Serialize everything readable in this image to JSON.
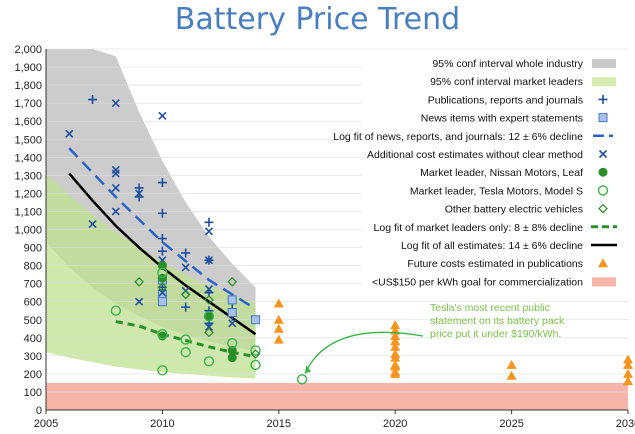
{
  "chart_data": {
    "type": "scatter",
    "title": "Battery Price Trend",
    "xlabel": "",
    "ylabel": "",
    "xlim": [
      2005,
      2030
    ],
    "ylim": [
      0,
      2000
    ],
    "xticks": [
      "2005",
      "2010",
      "2015",
      "2020",
      "2025",
      "2030"
    ],
    "yticks": [
      "0",
      "100",
      "200",
      "300",
      "400",
      "500",
      "600",
      "700",
      "800",
      "900",
      "1,000",
      "1,100",
      "1,200",
      "1,300",
      "1,400",
      "1,500",
      "1,600",
      "1,700",
      "1,800",
      "1,900",
      "2,000"
    ],
    "legend": [
      "95% conf interval whole industry",
      "95% conf interval market leaders",
      "Publications, reports and journals",
      "News items with expert statements",
      "Log fit of news, reports, and journals: 12 ± 6% decline",
      "Additional cost estimates without clear method",
      "Market leader, Nissan Motors, Leaf",
      "Market leader, Tesla Motors, Model S",
      "Other battery electric vehicles",
      "Log fit of market leaders only: 8 ± 8% decline",
      "Log fit of all estimates: 14 ± 6% decline",
      "Future costs estimated in publications",
      "<US$150 per kWh goal for commercialization"
    ],
    "annotation": [
      "Tesla's most recent public",
      "statement on its battery pack",
      "price put it under $190/kWh."
    ],
    "goal_band": [
      0,
      150
    ],
    "industry_ci": {
      "x": [
        2005,
        2006,
        2007,
        2008,
        2009,
        2010,
        2011,
        2012,
        2013,
        2014
      ],
      "lower": [
        930,
        790,
        680,
        590,
        520,
        460,
        415,
        380,
        350,
        330
      ],
      "upper": [
        2000,
        2000,
        2000,
        1960,
        1650,
        1380,
        1150,
        960,
        810,
        680
      ]
    },
    "leaders_ci": {
      "x": [
        2005,
        2006,
        2007,
        2008,
        2009,
        2010,
        2011,
        2012,
        2013,
        2014
      ],
      "lower": [
        320,
        290,
        265,
        240,
        225,
        210,
        200,
        190,
        180,
        175
      ],
      "upper": [
        1310,
        1190,
        1080,
        985,
        900,
        820,
        750,
        690,
        640,
        590
      ]
    },
    "series": [
      {
        "name": "Publications, reports and journals",
        "x": [
          2007,
          2009,
          2009,
          2010,
          2010,
          2010,
          2010,
          2010,
          2011,
          2011,
          2012,
          2012,
          2012,
          2012,
          2012,
          2013,
          2013
        ],
        "y": [
          1720,
          1230,
          1180,
          1260,
          1090,
          950,
          880,
          680,
          870,
          570,
          1040,
          830,
          650,
          550,
          480,
          560,
          520
        ]
      },
      {
        "name": "News items with expert statements",
        "x": [
          2010,
          2010,
          2010,
          2013,
          2013,
          2014
        ],
        "y": [
          720,
          640,
          600,
          610,
          540,
          500
        ]
      },
      {
        "name": "Log fit of news, reports, and journals: 12 ± 6% decline",
        "x": [
          2006,
          2008,
          2010,
          2012,
          2014
        ],
        "y": [
          1450,
          1180,
          930,
          720,
          560
        ]
      },
      {
        "name": "Additional cost estimates without clear method",
        "x": [
          2006,
          2007,
          2008,
          2008,
          2008,
          2008,
          2008,
          2009,
          2009,
          2010,
          2010,
          2010,
          2011,
          2011,
          2012,
          2012,
          2012,
          2012,
          2013
        ],
        "y": [
          1530,
          1030,
          1700,
          1330,
          1310,
          1230,
          1100,
          1200,
          600,
          1630,
          830,
          650,
          790,
          660,
          990,
          830,
          670,
          460,
          480
        ]
      },
      {
        "name": "Market leader, Nissan Motors, Leaf",
        "x": [
          2010,
          2010,
          2010,
          2012,
          2013,
          2013
        ],
        "y": [
          800,
          730,
          410,
          520,
          330,
          290
        ]
      },
      {
        "name": "Market leader, Tesla Motors, Model S",
        "x": [
          2008,
          2010,
          2010,
          2010,
          2011,
          2011,
          2012,
          2012,
          2013,
          2014,
          2014,
          2016
        ],
        "y": [
          550,
          760,
          420,
          220,
          390,
          320,
          520,
          270,
          370,
          330,
          250,
          170
        ]
      },
      {
        "name": "Other battery electric vehicles",
        "x": [
          2009,
          2010,
          2011,
          2012,
          2012,
          2013,
          2014
        ],
        "y": [
          710,
          680,
          640,
          610,
          430,
          710,
          310
        ]
      },
      {
        "name": "Log fit of market leaders only: 8 ± 8% decline",
        "x": [
          2008,
          2009,
          2010,
          2011,
          2012,
          2013,
          2014
        ],
        "y": [
          490,
          465,
          420,
          385,
          350,
          320,
          295
        ]
      },
      {
        "name": "Log fit of all estimates: 14 ± 6% decline",
        "x": [
          2006,
          2007,
          2008,
          2009,
          2010,
          2011,
          2012,
          2013,
          2014
        ],
        "y": [
          1310,
          1160,
          1020,
          900,
          790,
          690,
          600,
          510,
          420
        ]
      },
      {
        "name": "Future costs estimated in publications",
        "x": [
          2015,
          2015,
          2015,
          2015,
          2020,
          2020,
          2020,
          2020,
          2020,
          2020,
          2020,
          2020,
          2020,
          2020,
          2020,
          2025,
          2025,
          2030,
          2030,
          2030,
          2030
        ],
        "y": [
          590,
          500,
          450,
          390,
          470,
          440,
          410,
          380,
          350,
          310,
          290,
          250,
          240,
          210,
          200,
          250,
          190,
          280,
          250,
          200,
          160
        ]
      }
    ]
  }
}
